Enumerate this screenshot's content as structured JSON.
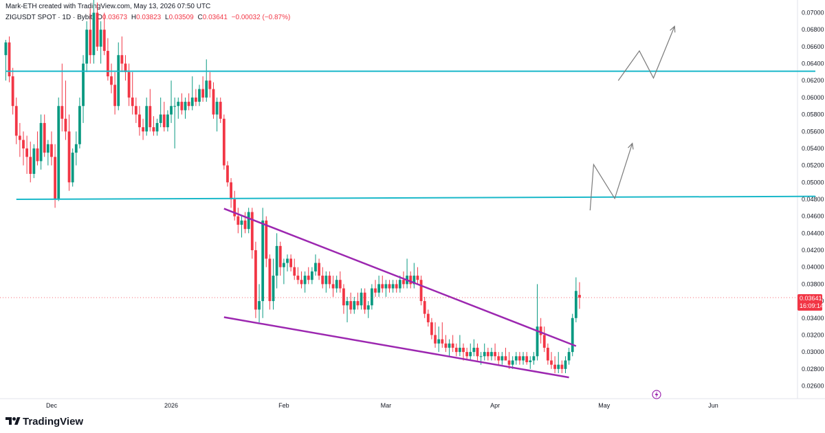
{
  "header": {
    "created_line": "Mark-ETH created with TradingView.com, May 13, 2026 07:50 UTC",
    "symbol": "ZIGUSDT SPOT · 1D · Bybit",
    "o_label": "O",
    "o_value": "0.03673",
    "h_label": "H",
    "h_value": "0.03823",
    "l_label": "L",
    "l_value": "0.03509",
    "c_label": "C",
    "c_value": "0.03641",
    "change": "−0.00032 (−0.87%)"
  },
  "price_tag": {
    "price": "0.03641",
    "countdown": "16:09:14"
  },
  "brand": {
    "name": "TradingView"
  },
  "colors": {
    "up": "#089981",
    "down": "#f23645",
    "support": "#19b8c9",
    "wedge": "#9c27b0",
    "projection": "#7a7a7a"
  },
  "chart_data": {
    "type": "candlestick",
    "x_axis": {
      "type": "time",
      "interval": "1D",
      "tick_labels": [
        "Dec",
        "2026",
        "Feb",
        "Mar",
        "Apr",
        "May",
        "Jun"
      ]
    },
    "y_axis": {
      "min": 0.0245,
      "max": 0.0715,
      "tick_labels": [
        "0.07000",
        "0.06800",
        "0.06600",
        "0.06400",
        "0.06200",
        "0.06000",
        "0.05800",
        "0.05600",
        "0.05400",
        "0.05200",
        "0.05000",
        "0.04800",
        "0.04600",
        "0.04400",
        "0.04200",
        "0.04000",
        "0.03800",
        "0.03600",
        "0.03400",
        "0.03200",
        "0.03000",
        "0.02800",
        "0.02600"
      ]
    },
    "last_price": 0.03641,
    "candles": [
      [
        0.065,
        0.0668,
        0.062,
        0.0665
      ],
      [
        0.0665,
        0.0672,
        0.0618,
        0.0625
      ],
      [
        0.0625,
        0.0635,
        0.058,
        0.059
      ],
      [
        0.059,
        0.06,
        0.0545,
        0.0555
      ],
      [
        0.0555,
        0.057,
        0.053,
        0.055
      ],
      [
        0.055,
        0.056,
        0.052,
        0.054
      ],
      [
        0.054,
        0.0555,
        0.051,
        0.053
      ],
      [
        0.053,
        0.0548,
        0.05,
        0.051
      ],
      [
        0.051,
        0.0545,
        0.0505,
        0.054
      ],
      [
        0.054,
        0.056,
        0.052,
        0.0525
      ],
      [
        0.0525,
        0.058,
        0.0515,
        0.057
      ],
      [
        0.057,
        0.058,
        0.053,
        0.0535
      ],
      [
        0.0535,
        0.055,
        0.052,
        0.0545
      ],
      [
        0.0545,
        0.056,
        0.052,
        0.053
      ],
      [
        0.053,
        0.0545,
        0.047,
        0.048
      ],
      [
        0.048,
        0.06,
        0.0478,
        0.059
      ],
      [
        0.059,
        0.064,
        0.056,
        0.0575
      ],
      [
        0.0575,
        0.062,
        0.055,
        0.056
      ],
      [
        0.056,
        0.058,
        0.049,
        0.05
      ],
      [
        0.05,
        0.054,
        0.0495,
        0.0535
      ],
      [
        0.0535,
        0.056,
        0.052,
        0.0545
      ],
      [
        0.0545,
        0.06,
        0.054,
        0.059
      ],
      [
        0.059,
        0.065,
        0.057,
        0.064
      ],
      [
        0.064,
        0.069,
        0.063,
        0.068
      ],
      [
        0.068,
        0.0705,
        0.064,
        0.065
      ],
      [
        0.065,
        0.072,
        0.064,
        0.07
      ],
      [
        0.07,
        0.0712,
        0.0655,
        0.066
      ],
      [
        0.066,
        0.069,
        0.064,
        0.068
      ],
      [
        0.068,
        0.07,
        0.065,
        0.0655
      ],
      [
        0.0655,
        0.067,
        0.062,
        0.0625
      ],
      [
        0.0625,
        0.064,
        0.0605,
        0.0615
      ],
      [
        0.0615,
        0.063,
        0.058,
        0.059
      ],
      [
        0.059,
        0.0665,
        0.0585,
        0.065
      ],
      [
        0.065,
        0.0672,
        0.063,
        0.064
      ],
      [
        0.064,
        0.065,
        0.062,
        0.063
      ],
      [
        0.063,
        0.064,
        0.059,
        0.06
      ],
      [
        0.06,
        0.063,
        0.058,
        0.059
      ],
      [
        0.059,
        0.06,
        0.057,
        0.058
      ],
      [
        0.058,
        0.059,
        0.0555,
        0.0565
      ],
      [
        0.0565,
        0.0575,
        0.055,
        0.056
      ],
      [
        0.056,
        0.06,
        0.0555,
        0.059
      ],
      [
        0.059,
        0.061,
        0.056,
        0.0565
      ],
      [
        0.0565,
        0.0578,
        0.0555,
        0.056
      ],
      [
        0.056,
        0.0575,
        0.0555,
        0.057
      ],
      [
        0.057,
        0.06,
        0.0565,
        0.058
      ],
      [
        0.058,
        0.0595,
        0.056,
        0.0565
      ],
      [
        0.0565,
        0.0585,
        0.056,
        0.058
      ],
      [
        0.058,
        0.062,
        0.057,
        0.059
      ],
      [
        0.059,
        0.06,
        0.054,
        0.059
      ],
      [
        0.059,
        0.06,
        0.0575,
        0.0595
      ],
      [
        0.0595,
        0.0605,
        0.058,
        0.0585
      ],
      [
        0.0585,
        0.06,
        0.0575,
        0.0595
      ],
      [
        0.0595,
        0.0605,
        0.0585,
        0.059
      ],
      [
        0.059,
        0.0625,
        0.0585,
        0.06
      ],
      [
        0.06,
        0.061,
        0.059,
        0.0595
      ],
      [
        0.0595,
        0.0615,
        0.059,
        0.061
      ],
      [
        0.061,
        0.0625,
        0.0595,
        0.06
      ],
      [
        0.06,
        0.0645,
        0.0595,
        0.062
      ],
      [
        0.062,
        0.063,
        0.06,
        0.061
      ],
      [
        0.061,
        0.0618,
        0.0575,
        0.058
      ],
      [
        0.058,
        0.06,
        0.056,
        0.0595
      ],
      [
        0.0595,
        0.06,
        0.057,
        0.0575
      ],
      [
        0.0575,
        0.058,
        0.0515,
        0.052
      ],
      [
        0.052,
        0.0525,
        0.0495,
        0.05
      ],
      [
        0.05,
        0.0505,
        0.047,
        0.048
      ],
      [
        0.048,
        0.049,
        0.0455,
        0.046
      ],
      [
        0.046,
        0.047,
        0.044,
        0.045
      ],
      [
        0.045,
        0.046,
        0.0435,
        0.0455
      ],
      [
        0.0455,
        0.0465,
        0.044,
        0.0445
      ],
      [
        0.0445,
        0.047,
        0.044,
        0.0465
      ],
      [
        0.0465,
        0.047,
        0.041,
        0.042
      ],
      [
        0.042,
        0.043,
        0.034,
        0.035
      ],
      [
        0.035,
        0.038,
        0.0335,
        0.036
      ],
      [
        0.036,
        0.047,
        0.034,
        0.0455
      ],
      [
        0.0455,
        0.046,
        0.04,
        0.041
      ],
      [
        0.041,
        0.0415,
        0.035,
        0.036
      ],
      [
        0.036,
        0.041,
        0.035,
        0.039
      ],
      [
        0.039,
        0.044,
        0.0375,
        0.0425
      ],
      [
        0.0425,
        0.043,
        0.039,
        0.04
      ],
      [
        0.04,
        0.041,
        0.038,
        0.0405
      ],
      [
        0.0405,
        0.0415,
        0.0395,
        0.041
      ],
      [
        0.041,
        0.0415,
        0.0395,
        0.04
      ],
      [
        0.04,
        0.041,
        0.0385,
        0.039
      ],
      [
        0.039,
        0.04,
        0.038,
        0.0385
      ],
      [
        0.0385,
        0.0395,
        0.0375,
        0.038
      ],
      [
        0.038,
        0.0395,
        0.037,
        0.039
      ],
      [
        0.039,
        0.04,
        0.038,
        0.0385
      ],
      [
        0.0385,
        0.04,
        0.038,
        0.0395
      ],
      [
        0.0395,
        0.0415,
        0.039,
        0.0405
      ],
      [
        0.0405,
        0.041,
        0.0385,
        0.039
      ],
      [
        0.039,
        0.04,
        0.0375,
        0.038
      ],
      [
        0.038,
        0.0395,
        0.037,
        0.039
      ],
      [
        0.039,
        0.0395,
        0.0375,
        0.038
      ],
      [
        0.038,
        0.039,
        0.0365,
        0.0375
      ],
      [
        0.0375,
        0.039,
        0.037,
        0.0385
      ],
      [
        0.0385,
        0.0395,
        0.037,
        0.0375
      ],
      [
        0.0375,
        0.038,
        0.0345,
        0.0355
      ],
      [
        0.0355,
        0.0365,
        0.0335,
        0.036
      ],
      [
        0.036,
        0.037,
        0.0345,
        0.035
      ],
      [
        0.035,
        0.0365,
        0.0345,
        0.036
      ],
      [
        0.036,
        0.037,
        0.035,
        0.0355
      ],
      [
        0.0355,
        0.0375,
        0.035,
        0.037
      ],
      [
        0.037,
        0.0375,
        0.0345,
        0.035
      ],
      [
        0.035,
        0.036,
        0.034,
        0.0355
      ],
      [
        0.0355,
        0.038,
        0.035,
        0.0375
      ],
      [
        0.0375,
        0.0385,
        0.0365,
        0.037
      ],
      [
        0.037,
        0.039,
        0.0365,
        0.038
      ],
      [
        0.038,
        0.039,
        0.037,
        0.0375
      ],
      [
        0.0375,
        0.0385,
        0.0365,
        0.038
      ],
      [
        0.038,
        0.0385,
        0.037,
        0.0375
      ],
      [
        0.0375,
        0.0385,
        0.037,
        0.038
      ],
      [
        0.038,
        0.0385,
        0.037,
        0.0375
      ],
      [
        0.0375,
        0.039,
        0.037,
        0.0385
      ],
      [
        0.0385,
        0.0395,
        0.0375,
        0.038
      ],
      [
        0.038,
        0.041,
        0.0375,
        0.039
      ],
      [
        0.039,
        0.0395,
        0.0375,
        0.038
      ],
      [
        0.038,
        0.0405,
        0.0375,
        0.039
      ],
      [
        0.039,
        0.04,
        0.038,
        0.0385
      ],
      [
        0.0385,
        0.039,
        0.0355,
        0.036
      ],
      [
        0.036,
        0.0365,
        0.034,
        0.0345
      ],
      [
        0.0345,
        0.035,
        0.033,
        0.0335
      ],
      [
        0.0335,
        0.034,
        0.0315,
        0.032
      ],
      [
        0.032,
        0.0335,
        0.0305,
        0.031
      ],
      [
        0.031,
        0.033,
        0.03,
        0.0315
      ],
      [
        0.0315,
        0.0335,
        0.0305,
        0.031
      ],
      [
        0.031,
        0.032,
        0.03,
        0.0305
      ],
      [
        0.0305,
        0.0315,
        0.0295,
        0.031
      ],
      [
        0.031,
        0.032,
        0.03,
        0.0305
      ],
      [
        0.0305,
        0.031,
        0.0295,
        0.03
      ],
      [
        0.03,
        0.032,
        0.0295,
        0.0305
      ],
      [
        0.0305,
        0.031,
        0.029,
        0.03
      ],
      [
        0.03,
        0.0305,
        0.029,
        0.0295
      ],
      [
        0.0295,
        0.031,
        0.029,
        0.03
      ],
      [
        0.03,
        0.0315,
        0.0295,
        0.0305
      ],
      [
        0.0305,
        0.031,
        0.029,
        0.0295
      ],
      [
        0.0295,
        0.03,
        0.0285,
        0.0295
      ],
      [
        0.0295,
        0.031,
        0.029,
        0.03
      ],
      [
        0.03,
        0.0305,
        0.029,
        0.0295
      ],
      [
        0.0295,
        0.0305,
        0.029,
        0.03
      ],
      [
        0.03,
        0.031,
        0.029,
        0.0295
      ],
      [
        0.0295,
        0.03,
        0.0285,
        0.029
      ],
      [
        0.029,
        0.03,
        0.0285,
        0.0295
      ],
      [
        0.0295,
        0.0305,
        0.029,
        0.029
      ],
      [
        0.029,
        0.03,
        0.028,
        0.0285
      ],
      [
        0.0285,
        0.0295,
        0.028,
        0.029
      ],
      [
        0.029,
        0.03,
        0.0285,
        0.0295
      ],
      [
        0.0295,
        0.03,
        0.0285,
        0.029
      ],
      [
        0.029,
        0.03,
        0.0285,
        0.0295
      ],
      [
        0.0295,
        0.03,
        0.0285,
        0.0288
      ],
      [
        0.0288,
        0.0295,
        0.028,
        0.029
      ],
      [
        0.029,
        0.03,
        0.0285,
        0.0295
      ],
      [
        0.0295,
        0.038,
        0.029,
        0.033
      ],
      [
        0.033,
        0.034,
        0.031,
        0.032
      ],
      [
        0.032,
        0.033,
        0.03,
        0.0305
      ],
      [
        0.0305,
        0.031,
        0.0285,
        0.029
      ],
      [
        0.029,
        0.03,
        0.028,
        0.0285
      ],
      [
        0.0285,
        0.0295,
        0.0275,
        0.028
      ],
      [
        0.028,
        0.03,
        0.0275,
        0.0285
      ],
      [
        0.0285,
        0.029,
        0.0275,
        0.028
      ],
      [
        0.028,
        0.0295,
        0.0275,
        0.029
      ],
      [
        0.029,
        0.0305,
        0.0285,
        0.03
      ],
      [
        0.03,
        0.0345,
        0.0295,
        0.034
      ],
      [
        0.034,
        0.0388,
        0.0335,
        0.0372
      ],
      [
        0.03673,
        0.03823,
        0.03509,
        0.03641
      ]
    ],
    "annotations": {
      "support_lines": [
        {
          "x_start_index": 3,
          "x_end_index": 230,
          "y_start": 0.048,
          "y_end": 0.04835
        },
        {
          "x_start_index": 0,
          "x_end_index": 230,
          "y_start": 0.0631,
          "y_end": 0.0631
        }
      ],
      "falling_wedge": [
        {
          "x_start_index": 62,
          "x_end_index": 162,
          "y_start": 0.0469,
          "y_end": 0.0307
        },
        {
          "x_start_index": 62,
          "x_end_index": 160,
          "y_start": 0.0341,
          "y_end": 0.027
        }
      ],
      "projection_paths": [
        [
          [
            166,
            0.0467
          ],
          [
            167,
            0.0521
          ],
          [
            173,
            0.0481
          ],
          [
            178,
            0.0546
          ]
        ],
        [
          [
            174,
            0.062
          ],
          [
            180,
            0.0655
          ],
          [
            184,
            0.0623
          ],
          [
            190,
            0.0684
          ]
        ]
      ]
    }
  }
}
